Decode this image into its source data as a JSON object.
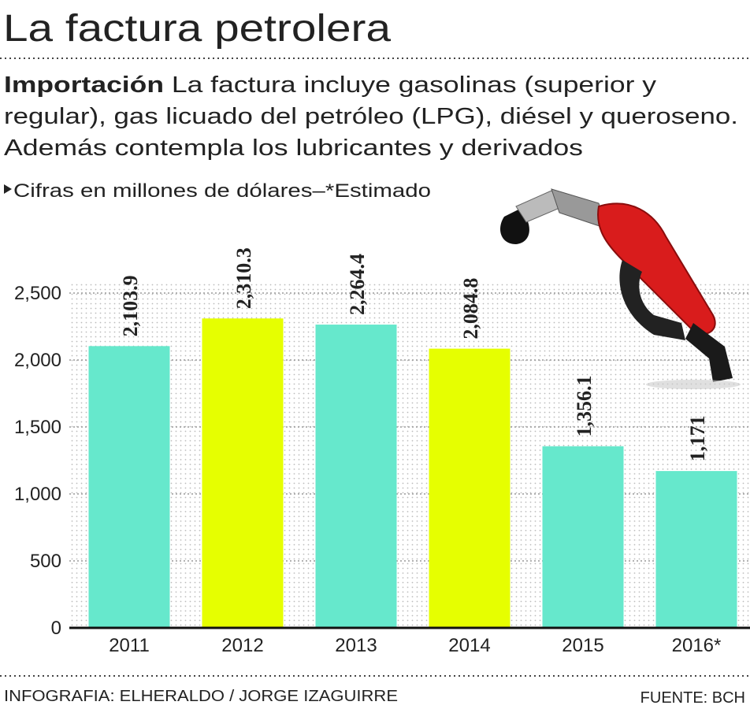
{
  "chart_data": {
    "type": "bar",
    "title": "La factura petrolera",
    "subtitle_lead": "Importación",
    "subtitle_lines": [
      "La factura  incluye gasolinas (superior y",
      "regular), gas licuado del petróleo (LPG), diésel y queroseno.",
      "Además contempla los lubricantes y derivados"
    ],
    "note": "Cifras en millones de dólares–*Estimado",
    "categories": [
      "2011",
      "2012",
      "2013",
      "2014",
      "2015",
      "2016*"
    ],
    "values": [
      2103.9,
      2310.3,
      2264.4,
      2084.8,
      1356.1,
      1171
    ],
    "value_labels": [
      "2,103.9",
      "2,310.3",
      "2,264.4",
      "2,084.8",
      "1,356.1",
      "1,171"
    ],
    "colors": [
      "#66e8cc",
      "#e6ff00",
      "#66e8cc",
      "#e6ff00",
      "#66e8cc",
      "#66e8cc"
    ],
    "ylim": [
      0,
      2500
    ],
    "yticks": [
      0,
      {
        "value": 500,
        "label": "500"
      },
      {
        "value": 1000,
        "label": "1,000"
      },
      {
        "value": 1500,
        "label": "1,500"
      },
      {
        "value": 2000,
        "label": "2,000"
      },
      {
        "value": 2500,
        "label": "2,500"
      }
    ],
    "grid": true,
    "credit": "INFOGRAFIA: ELHERALDO / JORGE IZAGUIRRE",
    "source": "FUENTE: BCH"
  }
}
